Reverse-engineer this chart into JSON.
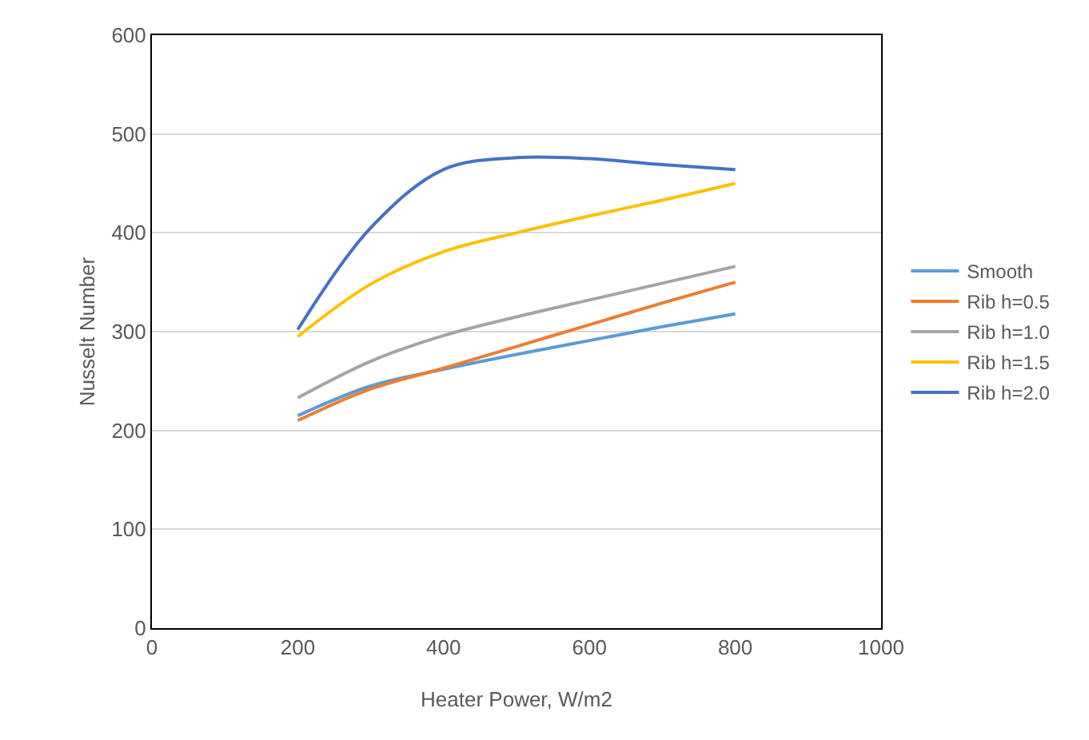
{
  "chart_data": {
    "type": "line",
    "xlabel": "Heater Power, W/m2",
    "ylabel": "Nusselt Number",
    "x": [
      200,
      300,
      400,
      500,
      600,
      700,
      800
    ],
    "xlim": [
      0,
      1000
    ],
    "xticks": [
      0,
      200,
      400,
      600,
      800,
      1000
    ],
    "ylim": [
      0,
      600
    ],
    "yticks": [
      0,
      100,
      200,
      300,
      400,
      500,
      600
    ],
    "grid": "y",
    "legend": "right",
    "marker": "none",
    "line_style": "solid",
    "series": [
      {
        "name": "Smooth",
        "color": "#5b9bd5",
        "values": [
          215,
          245,
          262,
          277,
          291,
          305,
          318
        ]
      },
      {
        "name": "Rib h=0.5",
        "color": "#ed7d31",
        "values": [
          210,
          242,
          263,
          285,
          307,
          329,
          350
        ]
      },
      {
        "name": "Rib h=1.0",
        "color": "#a5a5a5",
        "values": [
          233,
          270,
          296,
          315,
          332,
          349,
          366
        ]
      },
      {
        "name": "Rib h=1.5",
        "color": "#ffc000",
        "values": [
          295,
          348,
          381,
          400,
          417,
          433,
          450
        ]
      },
      {
        "name": "Rib h=2.0",
        "color": "#4472c4",
        "values": [
          302,
          405,
          464,
          476,
          475,
          469,
          464
        ]
      }
    ]
  }
}
